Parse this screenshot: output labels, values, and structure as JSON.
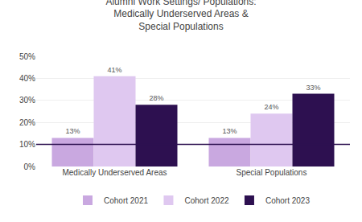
{
  "chart_data": {
    "type": "bar",
    "title": "Alumni Work Settings/ Populations:\nMedically Underserved Areas &\nSpecial Populations",
    "categories": [
      "Medically Underserved Areas",
      "Special Populations"
    ],
    "series": [
      {
        "name": "Cohort 2021",
        "color": "#c9a8e0",
        "values": [
          13,
          13
        ],
        "value_labels": [
          "13%",
          "13%"
        ]
      },
      {
        "name": "Cohort 2022",
        "color": "#dfc8f0",
        "values": [
          41,
          24
        ],
        "value_labels": [
          "41%",
          "24%"
        ]
      },
      {
        "name": "Cohort 2023",
        "color": "#2d1050",
        "values": [
          28,
          33
        ],
        "value_labels": [
          "28%",
          "33%"
        ]
      }
    ],
    "reference_line": {
      "value": 10,
      "color": "#2d1050"
    },
    "ylim": [
      0,
      50
    ],
    "yticks": [
      {
        "value": 0,
        "label": "0%"
      },
      {
        "value": 10,
        "label": "10%"
      },
      {
        "value": 20,
        "label": "20%"
      },
      {
        "value": 30,
        "label": "30%"
      },
      {
        "value": 40,
        "label": "40%"
      },
      {
        "value": 50,
        "label": "50%"
      }
    ],
    "grid": true,
    "data_labels": true,
    "legend": "bottom"
  }
}
